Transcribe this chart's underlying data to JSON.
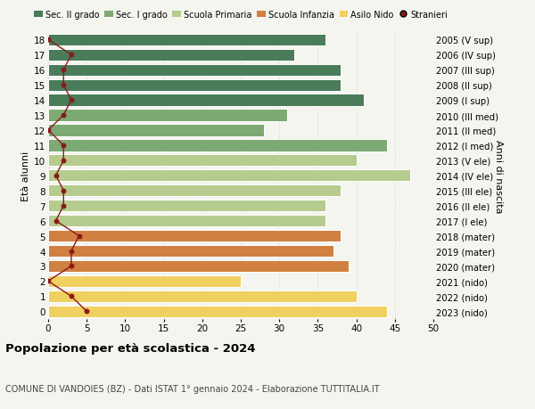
{
  "ages": [
    18,
    17,
    16,
    15,
    14,
    13,
    12,
    11,
    10,
    9,
    8,
    7,
    6,
    5,
    4,
    3,
    2,
    1,
    0
  ],
  "years": [
    "2005 (V sup)",
    "2006 (IV sup)",
    "2007 (III sup)",
    "2008 (II sup)",
    "2009 (I sup)",
    "2010 (III med)",
    "2011 (II med)",
    "2012 (I med)",
    "2013 (V ele)",
    "2014 (IV ele)",
    "2015 (III ele)",
    "2016 (II ele)",
    "2017 (I ele)",
    "2018 (mater)",
    "2019 (mater)",
    "2020 (mater)",
    "2021 (nido)",
    "2022 (nido)",
    "2023 (nido)"
  ],
  "bar_values": [
    36,
    32,
    38,
    38,
    41,
    31,
    28,
    44,
    40,
    47,
    38,
    36,
    36,
    38,
    37,
    39,
    25,
    40,
    44
  ],
  "bar_colors": [
    "#4a7c59",
    "#4a7c59",
    "#4a7c59",
    "#4a7c59",
    "#4a7c59",
    "#7daa72",
    "#7daa72",
    "#7daa72",
    "#b5cc8e",
    "#b5cc8e",
    "#b5cc8e",
    "#b5cc8e",
    "#b5cc8e",
    "#d08040",
    "#d08040",
    "#d08040",
    "#f0d060",
    "#f0d060",
    "#f0d060"
  ],
  "stranieri_values": [
    0,
    3,
    2,
    2,
    3,
    2,
    0,
    2,
    2,
    1,
    2,
    2,
    1,
    4,
    3,
    3,
    0,
    3,
    5
  ],
  "legend_labels": [
    "Sec. II grado",
    "Sec. I grado",
    "Scuola Primaria",
    "Scuola Infanzia",
    "Asilo Nido",
    "Stranieri"
  ],
  "legend_colors": [
    "#4a7c59",
    "#7daa72",
    "#b5cc8e",
    "#d08040",
    "#f0d060",
    "#8b1a1a"
  ],
  "title": "Popolazione per età scolastica - 2024",
  "subtitle": "COMUNE DI VANDOIES (BZ) - Dati ISTAT 1° gennaio 2024 - Elaborazione TUTTITALIA.IT",
  "ylabel_left": "Età alunni",
  "ylabel_right": "Anni di nascita",
  "xlim": [
    0,
    50
  ],
  "xticks": [
    0,
    5,
    10,
    15,
    20,
    25,
    30,
    35,
    40,
    45,
    50
  ],
  "ylim": [
    -0.5,
    18.5
  ],
  "bg_color": "#f5f5f0",
  "bar_edge_color": "white",
  "stranieri_color": "#8b1a1a",
  "grid_color": "#dddddd"
}
